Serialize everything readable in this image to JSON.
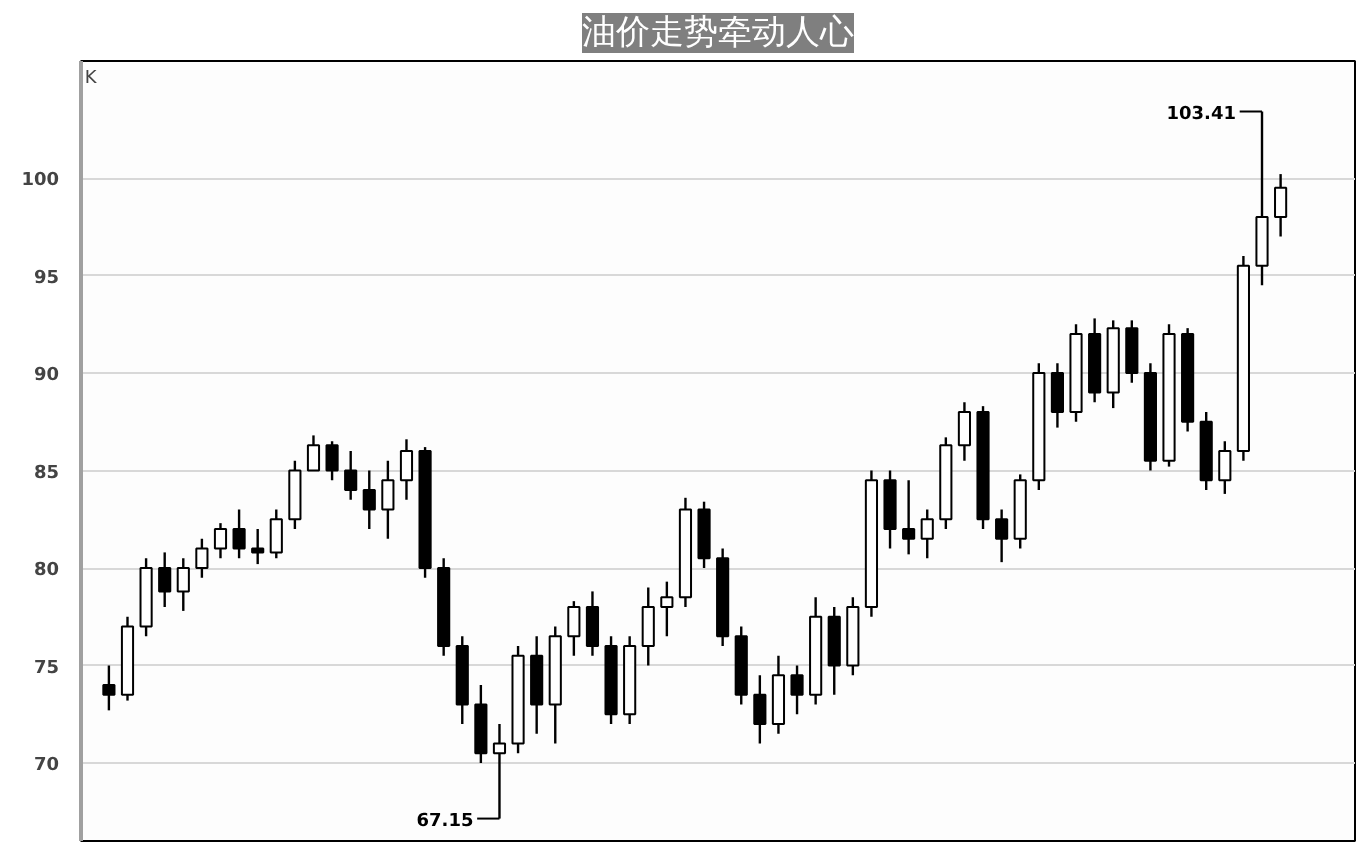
{
  "chart_data": {
    "type": "candlestick",
    "title": "油价走势牵动人心",
    "ylabel": "K",
    "color": "#000000",
    "categories": [
      null,
      null,
      null,
      null,
      null,
      null,
      null,
      null,
      null,
      null,
      null,
      null,
      null,
      null,
      null,
      null,
      null,
      null,
      null,
      null,
      null,
      null,
      null,
      null,
      null,
      null,
      null,
      null,
      null,
      null,
      null,
      null,
      null,
      null,
      null,
      null,
      null,
      null,
      null,
      null,
      null,
      null,
      null,
      null,
      null,
      null,
      null,
      null,
      null,
      null,
      null,
      null,
      null,
      null,
      null,
      null,
      null,
      null,
      null,
      null,
      null,
      null,
      null,
      null
    ],
    "ohlc": [
      [
        74,
        75,
        72.7,
        73.5
      ],
      [
        73.5,
        77.5,
        73.2,
        77
      ],
      [
        77,
        80.5,
        76.5,
        80
      ],
      [
        80,
        80.8,
        78,
        78.8
      ],
      [
        78.8,
        80.5,
        77.8,
        80
      ],
      [
        80,
        81.5,
        79.5,
        81
      ],
      [
        81,
        82.3,
        80.5,
        82
      ],
      [
        82,
        83,
        80.5,
        81
      ],
      [
        81,
        82,
        80.2,
        80.8
      ],
      [
        80.8,
        83,
        80.5,
        82.5
      ],
      [
        82.5,
        85.5,
        82,
        85
      ],
      [
        85,
        86.8,
        85,
        86.3
      ],
      [
        86.3,
        86.5,
        84.5,
        85
      ],
      [
        85,
        86,
        83.5,
        84
      ],
      [
        84,
        85,
        82,
        83
      ],
      [
        83,
        85.5,
        81.5,
        84.5
      ],
      [
        84.5,
        86.6,
        83.5,
        86
      ],
      [
        86,
        86.2,
        79.5,
        80
      ],
      [
        80,
        80.5,
        75.5,
        76
      ],
      [
        76,
        76.5,
        72,
        73
      ],
      [
        73,
        74,
        70,
        70.5
      ],
      [
        70.5,
        72,
        67.15,
        71
      ],
      [
        71,
        76,
        70.5,
        75.5
      ],
      [
        75.5,
        76.5,
        71.5,
        73
      ],
      [
        73,
        77,
        71,
        76.5
      ],
      [
        76.5,
        78.3,
        75.5,
        78
      ],
      [
        78,
        78.8,
        75.5,
        76
      ],
      [
        76,
        76.5,
        72,
        72.5
      ],
      [
        72.5,
        76.5,
        72,
        76
      ],
      [
        76,
        79,
        75,
        78
      ],
      [
        78,
        79.3,
        76.5,
        78.5
      ],
      [
        78.5,
        83.6,
        78,
        83
      ],
      [
        83,
        83.4,
        80,
        80.5
      ],
      [
        80.5,
        81,
        76,
        76.5
      ],
      [
        76.5,
        77,
        73,
        73.5
      ],
      [
        73.5,
        74.5,
        71,
        72
      ],
      [
        72,
        75.5,
        71.5,
        74.5
      ],
      [
        74.5,
        75,
        72.5,
        73.5
      ],
      [
        73.5,
        78.5,
        73,
        77.5
      ],
      [
        77.5,
        78,
        73.5,
        75
      ],
      [
        75,
        78.5,
        74.5,
        78
      ],
      [
        78,
        85,
        77.5,
        84.5
      ],
      [
        84.5,
        85,
        81,
        82
      ],
      [
        82,
        84.5,
        80.7,
        81.5
      ],
      [
        81.5,
        83,
        80.5,
        82.5
      ],
      [
        82.5,
        86.7,
        82,
        86.3
      ],
      [
        86.3,
        88.5,
        85.5,
        88
      ],
      [
        88,
        88.3,
        82,
        82.5
      ],
      [
        82.5,
        83,
        80.3,
        81.5
      ],
      [
        81.5,
        84.8,
        81,
        84.5
      ],
      [
        84.5,
        90.5,
        84,
        90
      ],
      [
        90,
        90.5,
        87.2,
        88
      ],
      [
        88,
        92.5,
        87.5,
        92
      ],
      [
        92,
        92.8,
        88.5,
        89
      ],
      [
        89,
        92.7,
        88.2,
        92.3
      ],
      [
        92.3,
        92.7,
        89.5,
        90
      ],
      [
        90,
        90.5,
        85,
        85.5
      ],
      [
        85.5,
        92.5,
        85.2,
        92
      ],
      [
        92,
        92.3,
        87,
        87.5
      ],
      [
        87.5,
        88,
        84,
        84.5
      ],
      [
        84.5,
        86.5,
        83.8,
        86
      ],
      [
        86,
        96,
        85.5,
        95.5
      ],
      [
        95.5,
        103.41,
        94.5,
        98
      ],
      [
        98,
        100.2,
        97,
        99.5
      ]
    ],
    "ylim": [
      66,
      106
    ],
    "yticks": [
      70,
      75,
      80,
      85,
      90,
      95,
      100
    ],
    "grid": "y",
    "annotations": [
      "103.41",
      "67.15"
    ]
  }
}
